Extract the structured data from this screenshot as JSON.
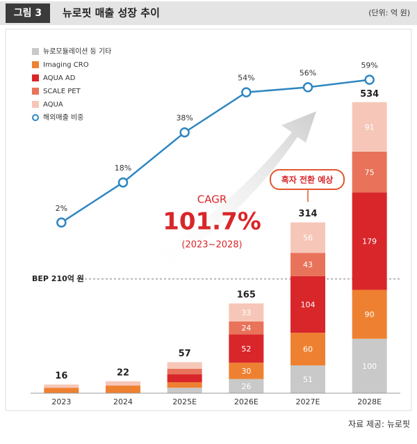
{
  "header": {
    "figure": "그림 3",
    "title": "뉴로핏 매출 성장 추이",
    "unit": "(단위: 억 원)"
  },
  "source": "자료 제공: 뉴로핏",
  "chart_data": {
    "type": "bar",
    "stacked": true,
    "categories": [
      "2023",
      "2024",
      "2025E",
      "2026E",
      "2027E",
      "2028E"
    ],
    "series": [
      {
        "name": "뉴로모듈레이션 등 기타",
        "color": "#c9c9c9",
        "values": [
          0,
          0,
          10,
          26,
          51,
          100
        ],
        "value_labels": [
          null,
          null,
          null,
          "26",
          "51",
          "100"
        ]
      },
      {
        "name": "Imaging CRO",
        "color": "#ee8131",
        "values": [
          10,
          14,
          10,
          30,
          60,
          90
        ],
        "value_labels": [
          null,
          null,
          null,
          "30",
          "60",
          "90"
        ]
      },
      {
        "name": "AQUA AD",
        "color": "#d9262a",
        "values": [
          0,
          0,
          15,
          52,
          104,
          179
        ],
        "value_labels": [
          null,
          null,
          null,
          "52",
          "104",
          "179"
        ]
      },
      {
        "name": "SCALE PET",
        "color": "#e8735a",
        "values": [
          0,
          0,
          10,
          24,
          43,
          75
        ],
        "value_labels": [
          null,
          null,
          null,
          "24",
          "43",
          "75"
        ]
      },
      {
        "name": "AQUA",
        "color": "#f6c7b8",
        "values": [
          6,
          8,
          12,
          33,
          56,
          91
        ],
        "value_labels": [
          null,
          null,
          null,
          "33",
          "56",
          "91"
        ]
      },
      {
        "name": "해외매출 비중",
        "type": "line",
        "axis": "y2",
        "color": "#2e86c1",
        "values": [
          2,
          18,
          38,
          54,
          56,
          59
        ],
        "value_labels": [
          "2%",
          "18%",
          "38%",
          "54%",
          "56%",
          "59%"
        ]
      }
    ],
    "totals": [
      16,
      22,
      57,
      165,
      314,
      534
    ],
    "ylim": [
      0,
      600
    ],
    "y2lim": [
      0,
      70
    ],
    "reference_line": {
      "value": 210,
      "label": "BEP 210억 원"
    },
    "annotations": {
      "cagr_title": "CAGR",
      "cagr_value": "101.7%",
      "cagr_period": "(2023~2028)",
      "callout": "흑자 전환 예상"
    }
  }
}
